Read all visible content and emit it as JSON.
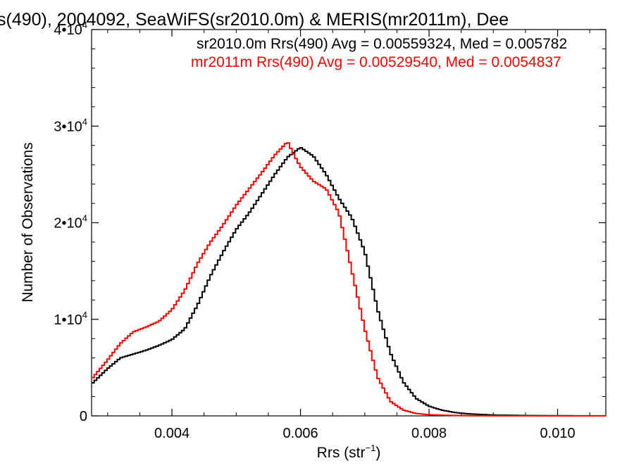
{
  "chart_data": {
    "type": "line",
    "title": "s(490), 2004092, SeaWiFS(sr2010.0m) & MERIS(mr2011m), Dee",
    "xlabel": "Rrs (str",
    "xlabel_sup": "−1",
    "xlabel_end": ")",
    "ylabel": "Number of Observations",
    "xlim": [
      0.00275,
      0.01075
    ],
    "ylim": [
      0,
      40000
    ],
    "x_ticks": [
      {
        "value": 0.004,
        "label": "0.004"
      },
      {
        "value": 0.006,
        "label": "0.006"
      },
      {
        "value": 0.008,
        "label": "0.008"
      },
      {
        "value": 0.01,
        "label": "0.010"
      }
    ],
    "y_ticks": [
      {
        "value": 0,
        "base": "0",
        "exp": ""
      },
      {
        "value": 10000,
        "base": "1•10",
        "exp": "4"
      },
      {
        "value": 20000,
        "base": "2•10",
        "exp": "4"
      },
      {
        "value": 30000,
        "base": "3•10",
        "exp": "4"
      },
      {
        "value": 40000,
        "base": "4•10",
        "exp": "4"
      }
    ],
    "series": [
      {
        "name": "sr2010.0m Rrs(490) Avg = 0.00559324, Med = 0.005782",
        "color": "#000000",
        "x": [
          0.00275,
          0.003,
          0.0032,
          0.0034,
          0.0036,
          0.0038,
          0.004,
          0.0042,
          0.0044,
          0.0046,
          0.0048,
          0.005,
          0.0052,
          0.0054,
          0.0056,
          0.0058,
          0.006,
          0.0062,
          0.0064,
          0.0066,
          0.0068,
          0.007,
          0.0072,
          0.0074,
          0.0076,
          0.0078,
          0.008,
          0.0082,
          0.0084,
          0.0086,
          0.0088,
          0.009,
          0.0095,
          0.01,
          0.01075
        ],
        "y": [
          3300,
          4900,
          6000,
          6400,
          6800,
          7300,
          7900,
          9000,
          11500,
          14500,
          17000,
          19300,
          21000,
          23000,
          25000,
          26800,
          27800,
          26900,
          25000,
          22500,
          20500,
          17000,
          11000,
          6500,
          3500,
          1800,
          1000,
          600,
          350,
          220,
          150,
          90,
          40,
          15,
          10
        ]
      },
      {
        "name": "mr2011m Rrs(490) Avg = 0.00529540, Med = 0.0054837",
        "color": "#ff0000",
        "x": [
          0.00275,
          0.003,
          0.0032,
          0.0034,
          0.0036,
          0.0038,
          0.004,
          0.0042,
          0.0044,
          0.0046,
          0.0048,
          0.005,
          0.0052,
          0.0054,
          0.0056,
          0.0058,
          0.0059,
          0.006,
          0.0062,
          0.0064,
          0.0066,
          0.0068,
          0.007,
          0.0072,
          0.0074,
          0.0076,
          0.0078,
          0.008,
          0.0082,
          0.0084,
          0.0086,
          0.0088,
          0.009,
          0.0095,
          0.01,
          0.01075
        ],
        "y": [
          3800,
          5800,
          7500,
          8700,
          9200,
          9800,
          11000,
          13000,
          15800,
          18000,
          19800,
          21800,
          23500,
          25200,
          27000,
          28400,
          27000,
          25800,
          24300,
          23500,
          21000,
          15000,
          9000,
          4000,
          1500,
          600,
          250,
          120,
          70,
          40,
          25,
          15,
          10,
          8,
          5,
          3
        ]
      }
    ],
    "annotations": [
      "sr2010.0m Rrs(490) Avg = 0.00559324, Med = 0.005782",
      "mr2011m Rrs(490) Avg = 0.00529540, Med = 0.0054837"
    ]
  }
}
